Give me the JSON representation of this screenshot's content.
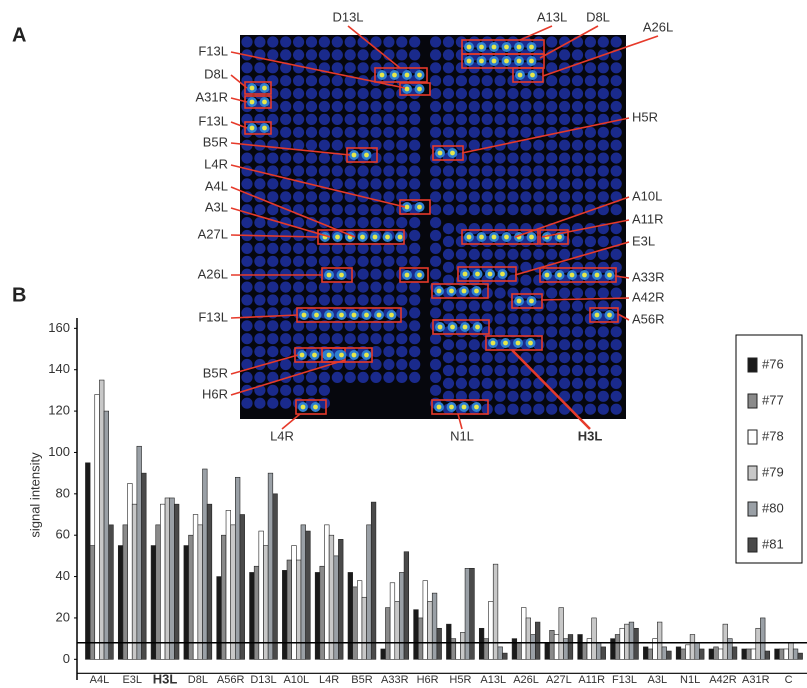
{
  "figure": {
    "panel_labels": [
      "A",
      "B"
    ],
    "array_labels": [
      "D13L",
      "A13L",
      "D8L",
      "A26L",
      "F13L",
      "D8L",
      "A31R",
      "F13L",
      "B5R",
      "L4R",
      "A4L",
      "A3L",
      "A27L",
      "A26L",
      "F13L",
      "B5R",
      "H6R",
      "L4R",
      "N1L",
      "H3L",
      "H5R",
      "A10L",
      "A11R",
      "E3L",
      "A33R",
      "A42R",
      "A56R"
    ]
  },
  "chart_data": {
    "type": "bar",
    "y_label": "signal intensity",
    "categories": [
      "A4L",
      "E3L",
      "H3L",
      "D8L",
      "A56R",
      "D13L",
      "A10L",
      "L4R",
      "B5R",
      "A33R",
      "H6R",
      "H5R",
      "A13L",
      "A26L",
      "A27L",
      "A11R",
      "F13L",
      "A3L",
      "N1L",
      "A42R",
      "A31R",
      "C"
    ],
    "series": [
      {
        "name": "#76",
        "color": "#1a1a1a",
        "values": [
          95,
          55,
          55,
          55,
          40,
          42,
          43,
          42,
          42,
          5,
          24,
          17,
          15,
          10,
          8,
          12,
          10,
          6,
          6,
          5,
          5,
          5
        ]
      },
      {
        "name": "#77",
        "color": "#8a8a8a",
        "values": [
          55,
          65,
          65,
          60,
          60,
          45,
          48,
          45,
          35,
          25,
          20,
          10,
          10,
          8,
          14,
          8,
          12,
          5,
          5,
          6,
          5,
          5
        ]
      },
      {
        "name": "#78",
        "color": "#ffffff",
        "values": [
          128,
          85,
          75,
          70,
          72,
          62,
          55,
          65,
          38,
          37,
          38,
          8,
          28,
          25,
          12,
          10,
          15,
          10,
          7,
          5,
          5,
          5
        ]
      },
      {
        "name": "#79",
        "color": "#c8c8c8",
        "values": [
          135,
          75,
          78,
          65,
          65,
          55,
          48,
          60,
          30,
          28,
          28,
          13,
          46,
          20,
          25,
          20,
          17,
          18,
          12,
          17,
          15,
          8
        ]
      },
      {
        "name": "#80",
        "color": "#9aa0a6",
        "values": [
          120,
          103,
          78,
          92,
          88,
          90,
          65,
          50,
          65,
          42,
          32,
          44,
          6,
          12,
          10,
          8,
          18,
          6,
          8,
          10,
          20,
          5
        ]
      },
      {
        "name": "#81",
        "color": "#4a4a4a",
        "values": [
          65,
          90,
          75,
          75,
          70,
          80,
          62,
          58,
          76,
          52,
          15,
          44,
          3,
          18,
          12,
          6,
          15,
          4,
          5,
          6,
          4,
          3
        ]
      }
    ],
    "ylim": [
      -10,
      165
    ],
    "yticks": [
      0,
      20,
      40,
      60,
      80,
      100,
      120,
      140,
      160
    ],
    "reference_line": 8,
    "grid": false
  }
}
